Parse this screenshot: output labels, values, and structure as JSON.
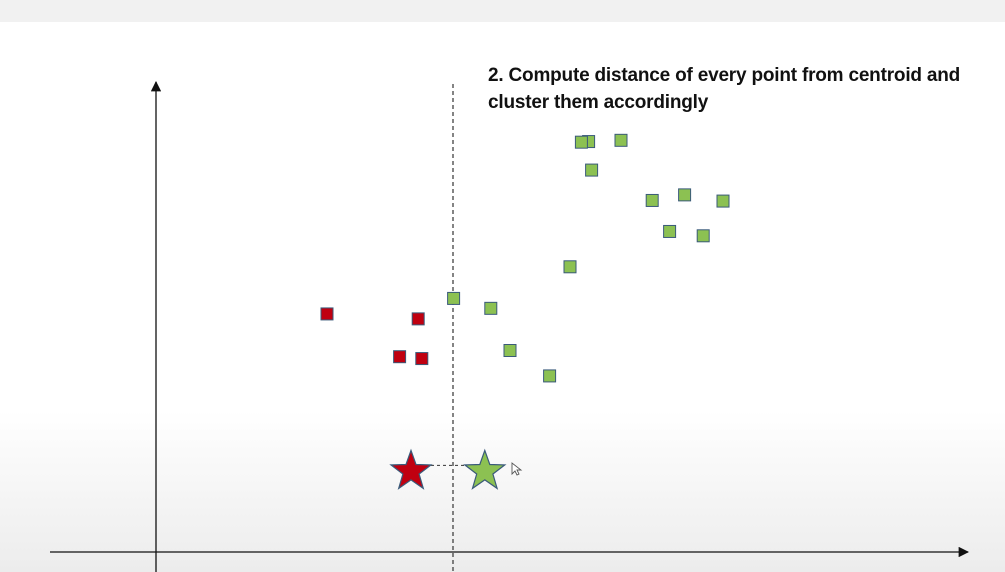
{
  "caption": "2. Compute distance of every point from centroid and cluster them accordingly",
  "colors": {
    "cluster_red": "#c00010",
    "cluster_green": "#8cc152",
    "marker_outline": "#3a5a7a",
    "axis": "#111111",
    "divider": "#333333"
  },
  "chart_data": {
    "type": "scatter",
    "title": "",
    "xlabel": "",
    "ylabel": "",
    "grid": false,
    "series": [
      {
        "cluster": "red",
        "marker": "square",
        "points": [
          [
            2.85,
            3.84
          ],
          [
            4.06,
            3.15
          ],
          [
            4.37,
            3.76
          ],
          [
            4.43,
            3.12
          ]
        ]
      },
      {
        "cluster": "green",
        "marker": "square",
        "points": [
          [
            4.96,
            4.09
          ],
          [
            6.9,
            4.6
          ],
          [
            7.21,
            6.62
          ],
          [
            7.26,
            6.16
          ],
          [
            7.75,
            6.64
          ],
          [
            8.27,
            5.67
          ],
          [
            8.56,
            5.17
          ],
          [
            8.81,
            5.76
          ],
          [
            9.12,
            5.1
          ],
          [
            9.45,
            5.66
          ],
          [
            7.09,
            6.61
          ],
          [
            5.58,
            3.93
          ],
          [
            5.9,
            3.25
          ],
          [
            6.56,
            2.84
          ]
        ]
      }
    ],
    "centroids": [
      {
        "cluster": "red",
        "marker": "star",
        "point": [
          4.25,
          1.3
        ]
      },
      {
        "cluster": "green",
        "marker": "star",
        "point": [
          5.48,
          1.3
        ]
      }
    ],
    "divider_x": 4.95
  }
}
